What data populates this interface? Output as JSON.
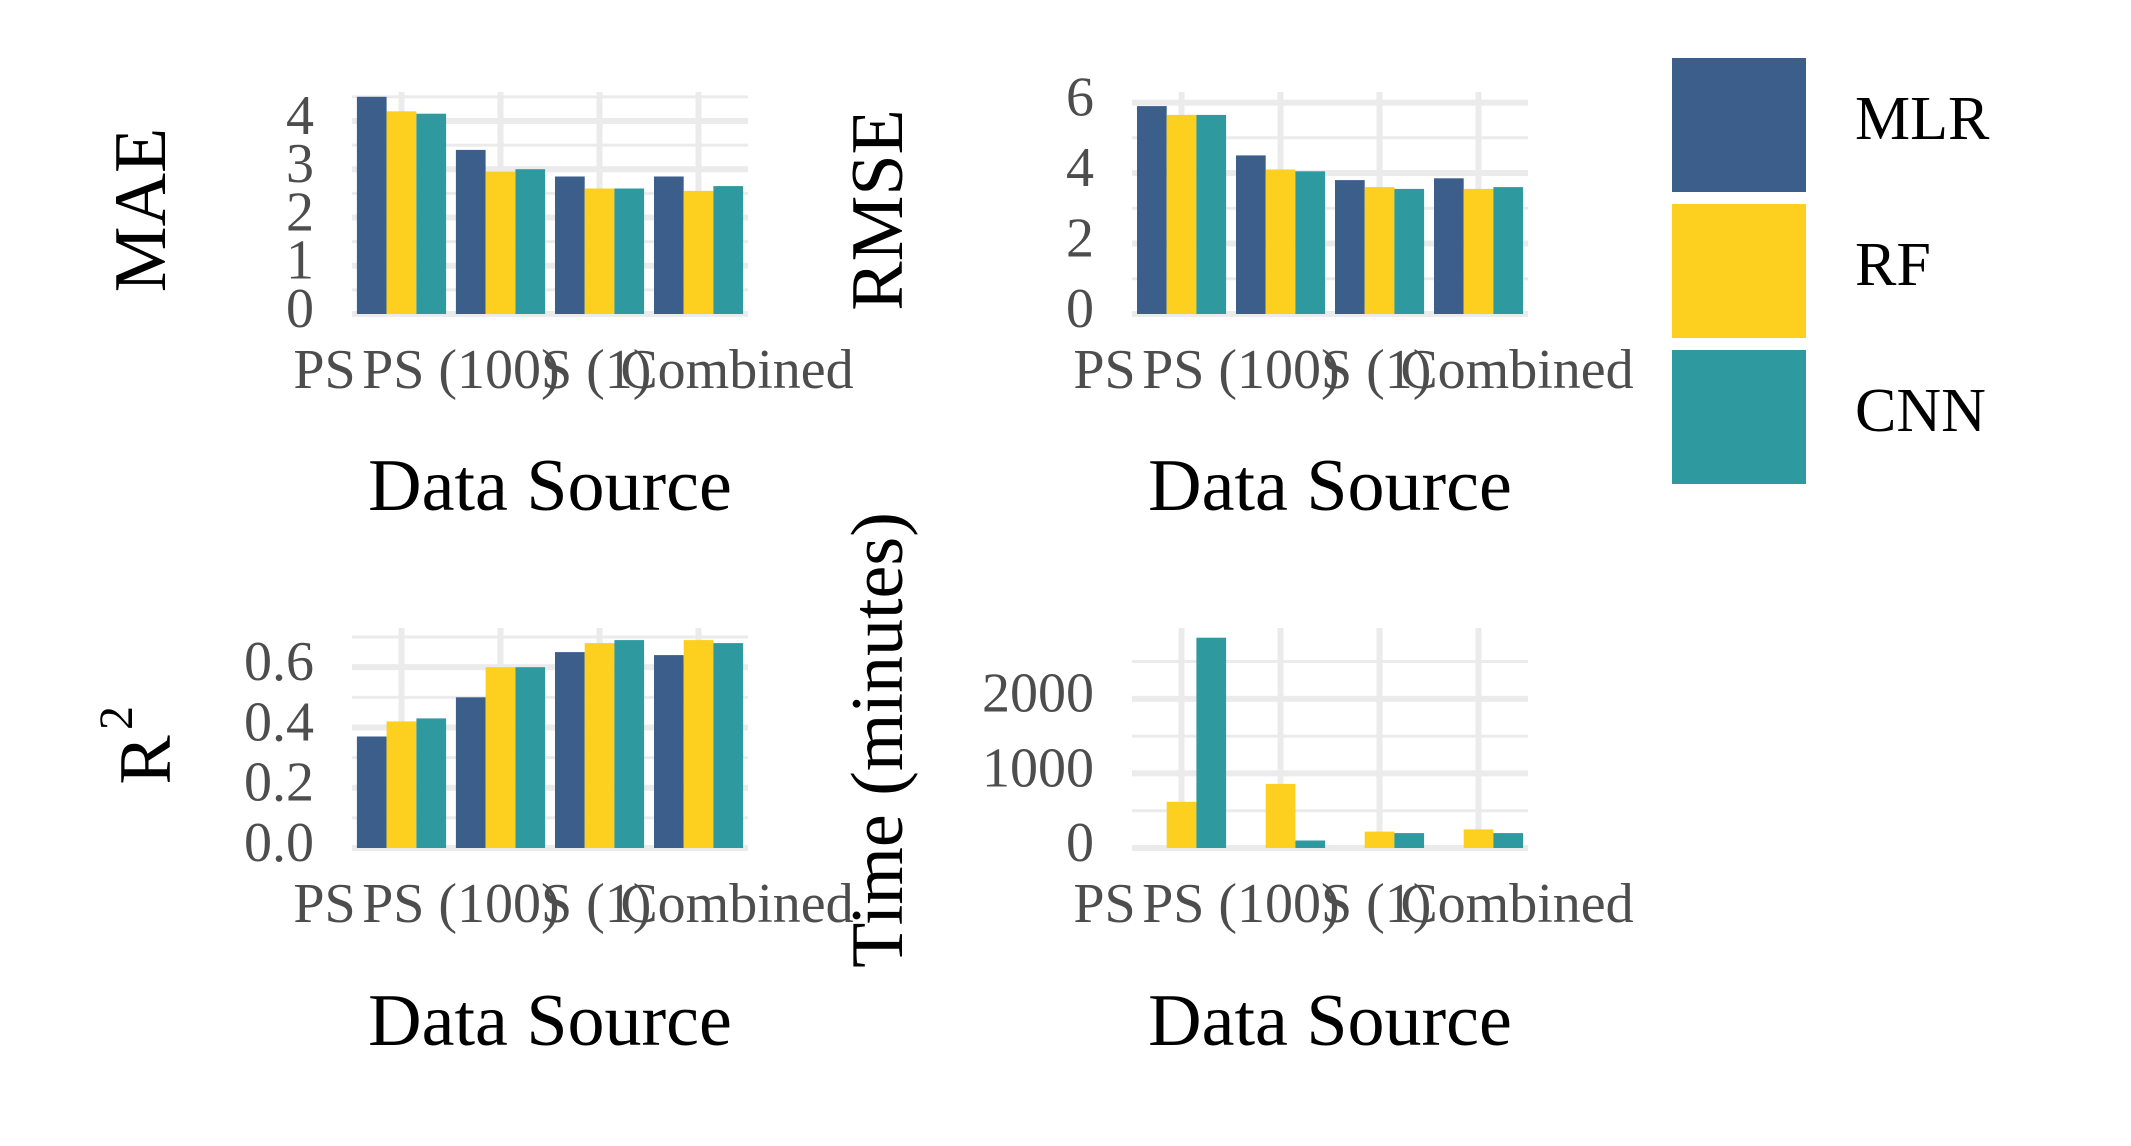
{
  "legend": {
    "items": [
      {
        "label": "MLR",
        "color": "#3B5F8A"
      },
      {
        "label": "RF",
        "color": "#FDCF1E"
      },
      {
        "label": "CNN",
        "color": "#2E9AA0"
      }
    ]
  },
  "chart_data": [
    {
      "type": "bar",
      "xlabel": "Data Source",
      "ylabel": "MAE",
      "categories": [
        "PS",
        "PS (100)",
        "S (1)",
        "Combined"
      ],
      "tick_labels": [
        "0",
        "1",
        "2",
        "3",
        "4"
      ],
      "ylim": [
        0,
        4.6
      ],
      "grid": true,
      "series": [
        {
          "name": "MLR",
          "values": [
            4.5,
            3.4,
            2.85,
            2.85
          ]
        },
        {
          "name": "RF",
          "values": [
            4.2,
            2.95,
            2.6,
            2.55
          ]
        },
        {
          "name": "CNN",
          "values": [
            4.15,
            3.0,
            2.6,
            2.65
          ]
        }
      ]
    },
    {
      "type": "bar",
      "xlabel": "Data Source",
      "ylabel": "RMSE",
      "categories": [
        "PS",
        "PS (100)",
        "S (1)",
        "Combined"
      ],
      "tick_labels": [
        "0",
        "2",
        "4",
        "6"
      ],
      "ylim": [
        0,
        6.3
      ],
      "grid": true,
      "series": [
        {
          "name": "MLR",
          "values": [
            5.9,
            4.5,
            3.8,
            3.85
          ]
        },
        {
          "name": "RF",
          "values": [
            5.65,
            4.1,
            3.6,
            3.55
          ]
        },
        {
          "name": "CNN",
          "values": [
            5.65,
            4.05,
            3.55,
            3.6
          ]
        }
      ]
    },
    {
      "type": "bar",
      "xlabel": "Data Source",
      "ylabel": "R",
      "ylabel_superscript": "2",
      "categories": [
        "PS",
        "PS (100)",
        "S (1)",
        "Combined"
      ],
      "tick_labels": [
        "0.0",
        "0.2",
        "0.4",
        "0.6"
      ],
      "ylim": [
        0,
        0.73
      ],
      "grid": true,
      "series": [
        {
          "name": "MLR",
          "values": [
            0.37,
            0.5,
            0.65,
            0.64
          ]
        },
        {
          "name": "RF",
          "values": [
            0.42,
            0.6,
            0.68,
            0.69
          ]
        },
        {
          "name": "CNN",
          "values": [
            0.43,
            0.6,
            0.69,
            0.68
          ]
        }
      ]
    },
    {
      "type": "bar",
      "xlabel": "Data Source",
      "ylabel": "Time (minutes)",
      "categories": [
        "PS",
        "PS (100)",
        "S (1)",
        "Combined"
      ],
      "tick_labels": [
        "0",
        "1000",
        "2000"
      ],
      "ylim": [
        0,
        2950
      ],
      "grid": true,
      "series": [
        {
          "name": "MLR",
          "values": [
            0,
            0,
            0,
            0
          ]
        },
        {
          "name": "RF",
          "values": [
            620,
            860,
            220,
            250
          ]
        },
        {
          "name": "CNN",
          "values": [
            2820,
            100,
            200,
            200
          ]
        }
      ]
    }
  ]
}
